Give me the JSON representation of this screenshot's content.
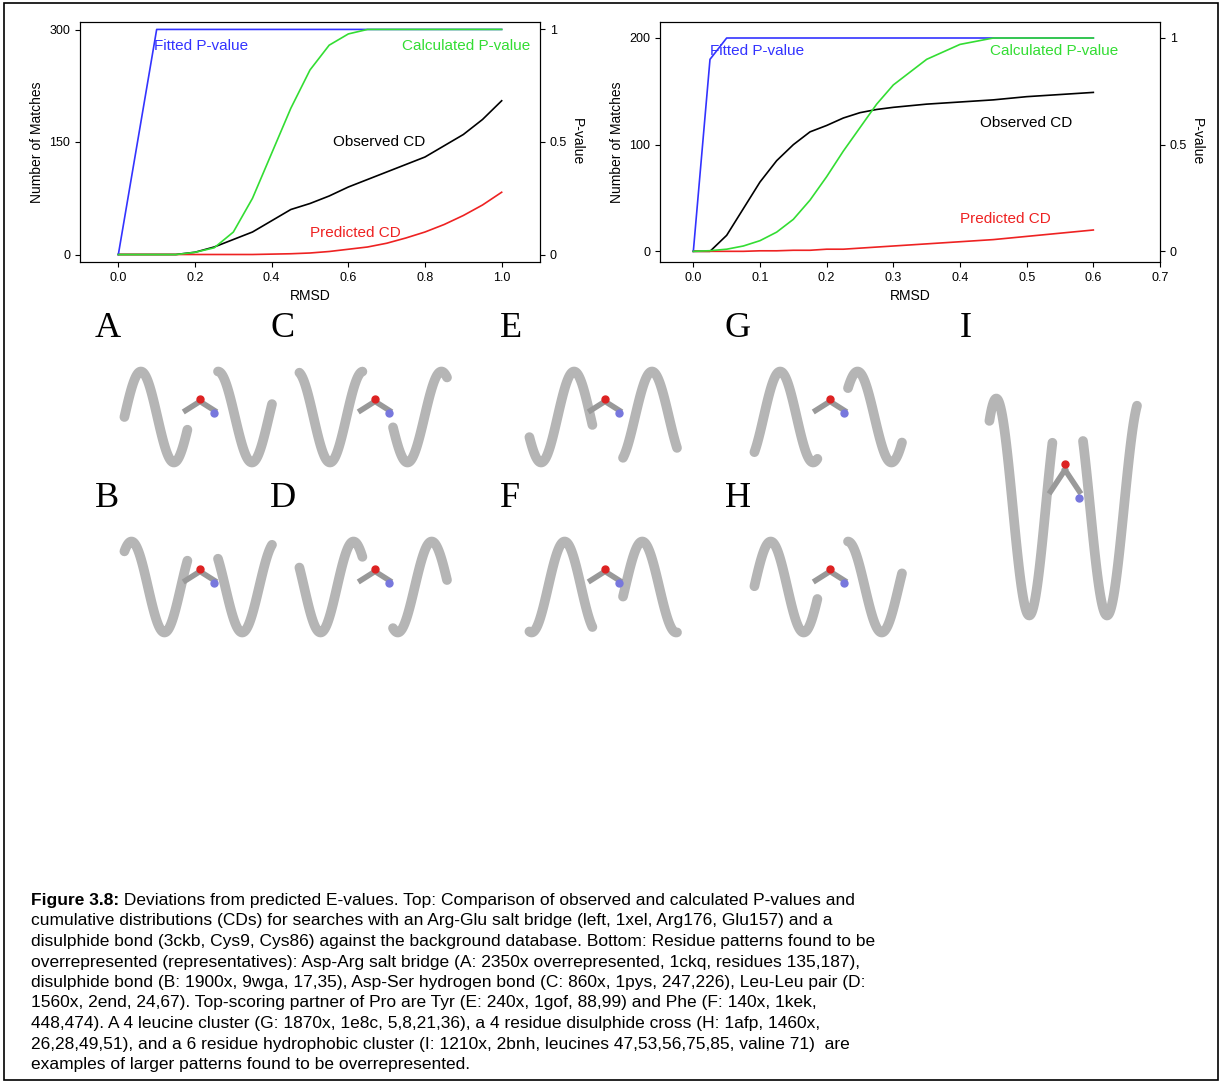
{
  "chart_data": [
    {
      "type": "line",
      "xlabel": "RMSD",
      "ylabel": "Number of Matches",
      "y2label": "P-value",
      "xlim": [
        -0.1,
        1.1
      ],
      "xticks": [
        0.0,
        0.2,
        0.4,
        0.6,
        0.8,
        1.0
      ],
      "ylim": [
        -10,
        310
      ],
      "yticks": [
        0,
        150,
        300
      ],
      "y2lim": [
        -0.033,
        1.033
      ],
      "y2ticks": [
        0,
        0.5,
        1
      ],
      "x": [
        0.0,
        0.05,
        0.1,
        0.15,
        0.2,
        0.25,
        0.3,
        0.35,
        0.4,
        0.45,
        0.5,
        0.55,
        0.6,
        0.65,
        0.7,
        0.75,
        0.8,
        0.85,
        0.9,
        0.95,
        1.0
      ],
      "series": [
        {
          "name": "Fitted P-value",
          "color": "#3333ff",
          "axis": "y2",
          "values": [
            0,
            0.5,
            1,
            1,
            1,
            1,
            1,
            1,
            1,
            1,
            1,
            1,
            1,
            1,
            1,
            1,
            1,
            1,
            1,
            1,
            1
          ]
        },
        {
          "name": "Calculated P-value",
          "color": "#33dd33",
          "axis": "y2",
          "values": [
            0,
            0,
            0,
            0,
            0.01,
            0.03,
            0.1,
            0.25,
            0.45,
            0.65,
            0.82,
            0.93,
            0.98,
            1,
            1,
            1,
            1,
            1,
            1,
            1,
            1
          ]
        },
        {
          "name": "Observed CD",
          "color": "#000000",
          "values": [
            0,
            0,
            0,
            0,
            3,
            10,
            20,
            30,
            45,
            60,
            68,
            78,
            90,
            100,
            110,
            120,
            130,
            145,
            160,
            180,
            205
          ]
        },
        {
          "name": "Predicted CD",
          "color": "#ee2222",
          "values": [
            0,
            0,
            0,
            0,
            0,
            0,
            0,
            0,
            0.5,
            1,
            2,
            4,
            7,
            10,
            15,
            22,
            30,
            40,
            52,
            66,
            83
          ]
        }
      ]
    },
    {
      "type": "line",
      "xlabel": "RMSD",
      "ylabel": "Number of Matches",
      "y2label": "P-value",
      "xlim": [
        -0.05,
        0.7
      ],
      "xticks": [
        0.0,
        0.1,
        0.2,
        0.3,
        0.4,
        0.5,
        0.6,
        0.7
      ],
      "ylim": [
        -10,
        215
      ],
      "yticks": [
        0,
        100,
        200
      ],
      "y2lim": [
        -0.05,
        1.075
      ],
      "y2ticks": [
        0,
        0.5,
        1
      ],
      "x": [
        0.0,
        0.025,
        0.05,
        0.075,
        0.1,
        0.125,
        0.15,
        0.175,
        0.2,
        0.225,
        0.25,
        0.275,
        0.3,
        0.35,
        0.4,
        0.45,
        0.5,
        0.55,
        0.6
      ],
      "series": [
        {
          "name": "Fitted P-value",
          "color": "#3333ff",
          "axis": "y2",
          "values": [
            0,
            0.9,
            1,
            1,
            1,
            1,
            1,
            1,
            1,
            1,
            1,
            1,
            1,
            1,
            1,
            1,
            1,
            1,
            1
          ]
        },
        {
          "name": "Calculated P-value",
          "color": "#33dd33",
          "axis": "y2",
          "values": [
            0,
            0.003,
            0.01,
            0.025,
            0.05,
            0.09,
            0.15,
            0.24,
            0.35,
            0.47,
            0.58,
            0.69,
            0.78,
            0.9,
            0.97,
            1,
            1,
            1,
            1
          ]
        },
        {
          "name": "Observed CD",
          "color": "#000000",
          "values": [
            0,
            0,
            15,
            40,
            65,
            85,
            100,
            112,
            118,
            125,
            130,
            133,
            135,
            138,
            140,
            142,
            145,
            147,
            149
          ]
        },
        {
          "name": "Predicted CD",
          "color": "#ee2222",
          "values": [
            0,
            0,
            0,
            0,
            0.5,
            0.5,
            1,
            1,
            2,
            2,
            3,
            4,
            5,
            7,
            9,
            11,
            14,
            17,
            20
          ]
        }
      ]
    }
  ],
  "panels": {
    "labels": [
      "A",
      "B",
      "C",
      "D",
      "E",
      "F",
      "G",
      "H",
      "I"
    ]
  },
  "caption": {
    "label": "Figure 3.8:",
    "lines": [
      " Deviations from predicted E-values. Top: Comparison of observed and calculated P-values and",
      "cumulative distributions (CDs) for searches with an Arg-Glu salt bridge (left, 1xel, Arg176, Glu157) and a",
      "disulphide bond (3ckb, Cys9, Cys86) against the background database. Bottom: Residue patterns found to be",
      "overrepresented (representatives): Asp-Arg salt bridge (A: 2350x overrepresented, 1ckq, residues 135,187),",
      "disulphide bond (B: 1900x, 9wga, 17,35), Asp-Ser hydrogen bond (C: 860x, 1pys, 247,226), Leu-Leu pair (D:",
      "1560x, 2end, 24,67). Top-scoring partner of Pro are Tyr (E: 240x, 1gof, 88,99) and Phe (F: 140x, 1kek,",
      "448,474). A 4 leucine cluster (G: 1870x, 1e8c, 5,8,21,36), a 4 residue disulphide cross (H: 1afp, 1460x,",
      "26,28,49,51), and a 6 residue hydrophobic cluster (I: 1210x, 2bnh, leucines 47,53,56,75,85, valine 71)  are",
      "examples of larger patterns found to be overrepresented."
    ]
  }
}
